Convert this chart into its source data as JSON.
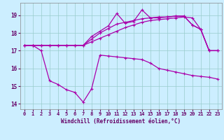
{
  "bg_color": "#cceeff",
  "line_color": "#aa00aa",
  "xlabel": "Windchill (Refroidissement éolien,°C)",
  "xlim": [
    -0.5,
    23.5
  ],
  "ylim": [
    13.7,
    19.7
  ],
  "yticks": [
    14,
    15,
    16,
    17,
    18,
    19
  ],
  "xticks": [
    0,
    1,
    2,
    3,
    4,
    5,
    6,
    7,
    8,
    9,
    10,
    11,
    12,
    13,
    14,
    15,
    16,
    17,
    18,
    19,
    20,
    21,
    22,
    23
  ],
  "line1_x": [
    0,
    1,
    2,
    3,
    4,
    5,
    6,
    7,
    8,
    9,
    10,
    11,
    12,
    13,
    14,
    15,
    16,
    17,
    18,
    19,
    20,
    21,
    22,
    23
  ],
  "line1_y": [
    17.3,
    17.3,
    17.3,
    17.3,
    17.3,
    17.3,
    17.3,
    17.3,
    17.5,
    17.7,
    17.9,
    18.1,
    18.3,
    18.45,
    18.6,
    18.7,
    18.75,
    18.8,
    18.85,
    18.9,
    18.85,
    18.2,
    17.0,
    17.0
  ],
  "line2_x": [
    0,
    1,
    2,
    3,
    4,
    5,
    6,
    7,
    8,
    9,
    10,
    11,
    12,
    13,
    14,
    15,
    16,
    17,
    18,
    19,
    20,
    21,
    22,
    23
  ],
  "line2_y": [
    17.3,
    17.3,
    17.3,
    17.3,
    17.3,
    17.3,
    17.3,
    17.3,
    17.65,
    18.0,
    18.25,
    18.5,
    18.6,
    18.7,
    18.8,
    18.85,
    18.9,
    18.9,
    18.95,
    18.95,
    18.45,
    18.2,
    17.0,
    17.0
  ],
  "line3_x": [
    0,
    1,
    2,
    3,
    4,
    5,
    6,
    7,
    8,
    9,
    10,
    11,
    12,
    13,
    14,
    15,
    16,
    17,
    18,
    19,
    20,
    21,
    22,
    23
  ],
  "line3_y": [
    17.3,
    17.3,
    17.3,
    17.3,
    17.3,
    17.3,
    17.3,
    17.3,
    17.8,
    18.1,
    18.4,
    19.1,
    18.55,
    18.65,
    19.3,
    18.85,
    18.85,
    18.9,
    18.95,
    18.95,
    18.45,
    18.2,
    17.0,
    17.0
  ],
  "line4_x": [
    0,
    1,
    2,
    3,
    4,
    5,
    6,
    7,
    8,
    9,
    10,
    11,
    12,
    13,
    14,
    15,
    16,
    17,
    18,
    19,
    20,
    21,
    22,
    23
  ],
  "line4_y": [
    17.3,
    17.3,
    17.0,
    15.3,
    15.1,
    14.8,
    14.65,
    14.1,
    14.85,
    16.75,
    16.7,
    16.65,
    16.6,
    16.55,
    16.5,
    16.3,
    16.0,
    15.9,
    15.8,
    15.7,
    15.6,
    15.55,
    15.5,
    15.4
  ],
  "grid_color": "#99cccc"
}
